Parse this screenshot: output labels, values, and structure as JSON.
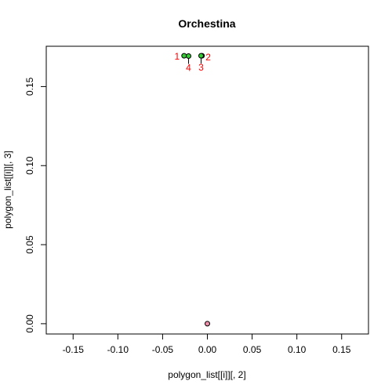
{
  "chart_data": {
    "type": "scatter",
    "title": "Orchestina",
    "xlabel": "polygon_list[[i]][, 2]",
    "ylabel": "polygon_list[[i]][, 3]",
    "xlim": [
      -0.18,
      0.18
    ],
    "ylim": [
      -0.0065,
      0.1755
    ],
    "xticks": [
      -0.15,
      -0.1,
      -0.05,
      0.0,
      0.05,
      0.1,
      0.15
    ],
    "xtick_labels": [
      "-0.15",
      "-0.10",
      "-0.05",
      "0.00",
      "0.05",
      "0.10",
      "0.15"
    ],
    "yticks": [
      0.0,
      0.05,
      0.1,
      0.15
    ],
    "ytick_labels": [
      "0.00",
      "0.05",
      "0.10",
      "0.15"
    ],
    "grid": false,
    "colors": {
      "polygon_point": "#33cc33",
      "origin_point": "#ee8ea8",
      "label": "#ff0000"
    },
    "polygon_points": [
      {
        "label": "1",
        "x": -0.026,
        "y": 0.1695
      },
      {
        "label": "2",
        "x": -0.006,
        "y": 0.1695
      },
      {
        "label": "3",
        "x": -0.007,
        "y": 0.1695
      },
      {
        "label": "4",
        "x": -0.021,
        "y": 0.1693
      }
    ],
    "origin_point": {
      "x": 0.0,
      "y": 0.0
    }
  }
}
